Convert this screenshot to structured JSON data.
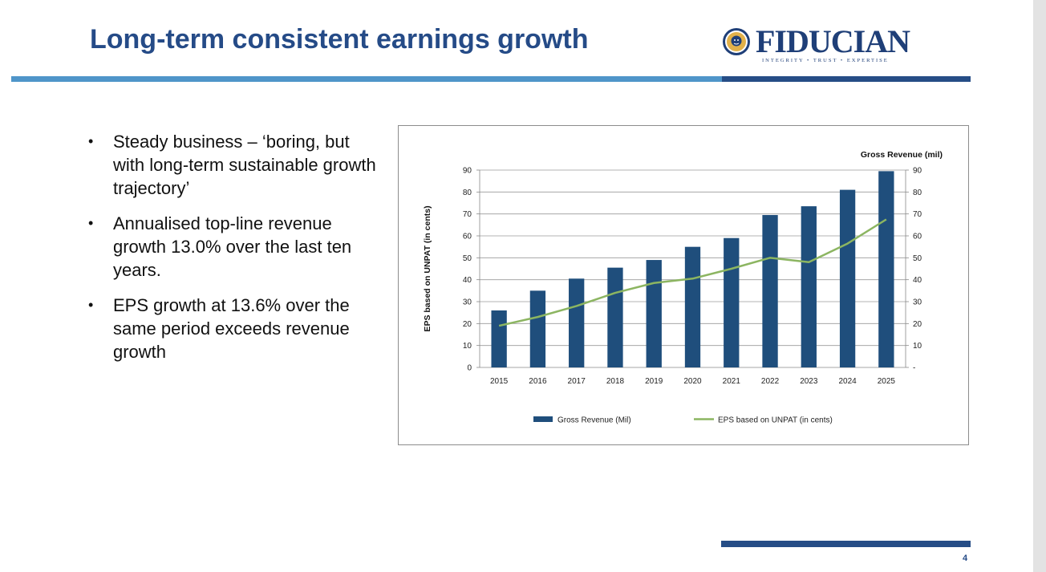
{
  "slide": {
    "title": "Long-term consistent earnings growth",
    "page_number": "4",
    "logo": {
      "name": "FIDUCIAN",
      "tagline": "INTEGRITY • TRUST • EXPERTISE"
    },
    "bullets": [
      "Steady business – ‘boring, but with long-term sustainable growth trajectory’",
      "Annualised top-line revenue growth 13.0% over the last ten years.",
      "EPS growth at 13.6% over the same period exceeds revenue growth"
    ],
    "colors": {
      "title": "#254b87",
      "accent_light": "#4f95c9",
      "accent_dark": "#264d86",
      "bar": "#1f4e7c",
      "line": "#8cb561"
    }
  },
  "chart_data": {
    "type": "bar",
    "categories": [
      "2015",
      "2016",
      "2017",
      "2018",
      "2019",
      "2020",
      "2021",
      "2022",
      "2023",
      "2024",
      "2025"
    ],
    "series": [
      {
        "name": "Gross Revenue (Mil)",
        "type": "bar",
        "axis": "right",
        "values": [
          26,
          35,
          40.5,
          45.5,
          49,
          55,
          59,
          69.5,
          73.5,
          81,
          89.5
        ]
      },
      {
        "name": "EPS based on UNPAT (in cents)",
        "type": "line",
        "axis": "left",
        "values": [
          19,
          23,
          28,
          34,
          38.5,
          40.5,
          45,
          50,
          48,
          56.5,
          67.5
        ]
      }
    ],
    "ylabel": "EPS based on UNPAT (in cents)",
    "y2label": "Gross Revenue (mil)",
    "ylim": [
      0,
      90
    ],
    "y2lim": [
      0,
      90
    ],
    "yticks": [
      "0",
      "10",
      "20",
      "30",
      "40",
      "50",
      "60",
      "70",
      "80",
      "90"
    ],
    "y2ticks": [
      "-",
      "10",
      "20",
      "30",
      "40",
      "50",
      "60",
      "70",
      "80",
      "90"
    ],
    "grid": true,
    "legend": "bottom"
  }
}
